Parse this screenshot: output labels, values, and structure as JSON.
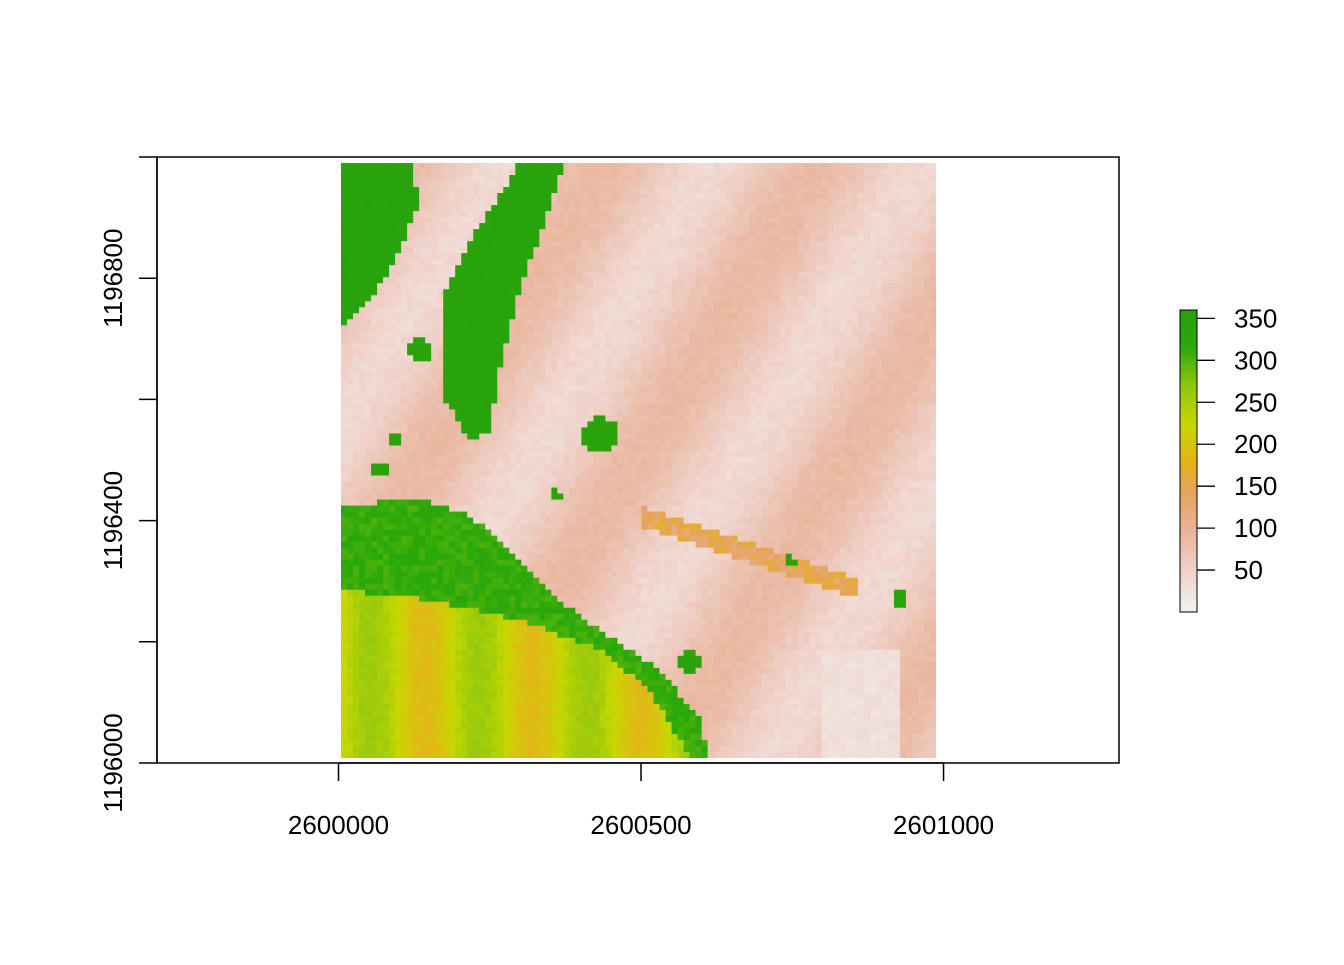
{
  "chart_data": {
    "type": "heatmap",
    "title": "",
    "xlabel": "",
    "ylabel": "",
    "xlim": [
      2599700,
      2601290
    ],
    "ylim": [
      1196000,
      1197000
    ],
    "raster_extent": {
      "x": [
        2600010,
        2600990
      ],
      "y": [
        1196010,
        1196990
      ]
    },
    "x_ticks": [
      2600000,
      2600500,
      2601000
    ],
    "x_tick_labels": [
      "2600000",
      "2600500",
      "2601000"
    ],
    "y_ticks": [
      1196000,
      1196200,
      1196400,
      1196600,
      1196800
    ],
    "y_tick_labels": [
      "1196000",
      "",
      "1196400",
      "",
      "1196800"
    ],
    "value_range": [
      0,
      360
    ],
    "legend": {
      "position": "right",
      "range": [
        0,
        360
      ],
      "ticks": [
        50,
        100,
        150,
        200,
        250,
        300,
        350
      ],
      "tick_labels": [
        "50",
        "100",
        "150",
        "200",
        "250",
        "300",
        "350"
      ]
    },
    "colors": {
      "low": "#f2f2f2",
      "ramp": [
        "#f2f2f2",
        "#efd0c7",
        "#e8b196",
        "#e6a35a",
        "#e4b319",
        "#c7d800",
        "#8cc60f",
        "#2aa80a",
        "#27a00d"
      ]
    }
  }
}
